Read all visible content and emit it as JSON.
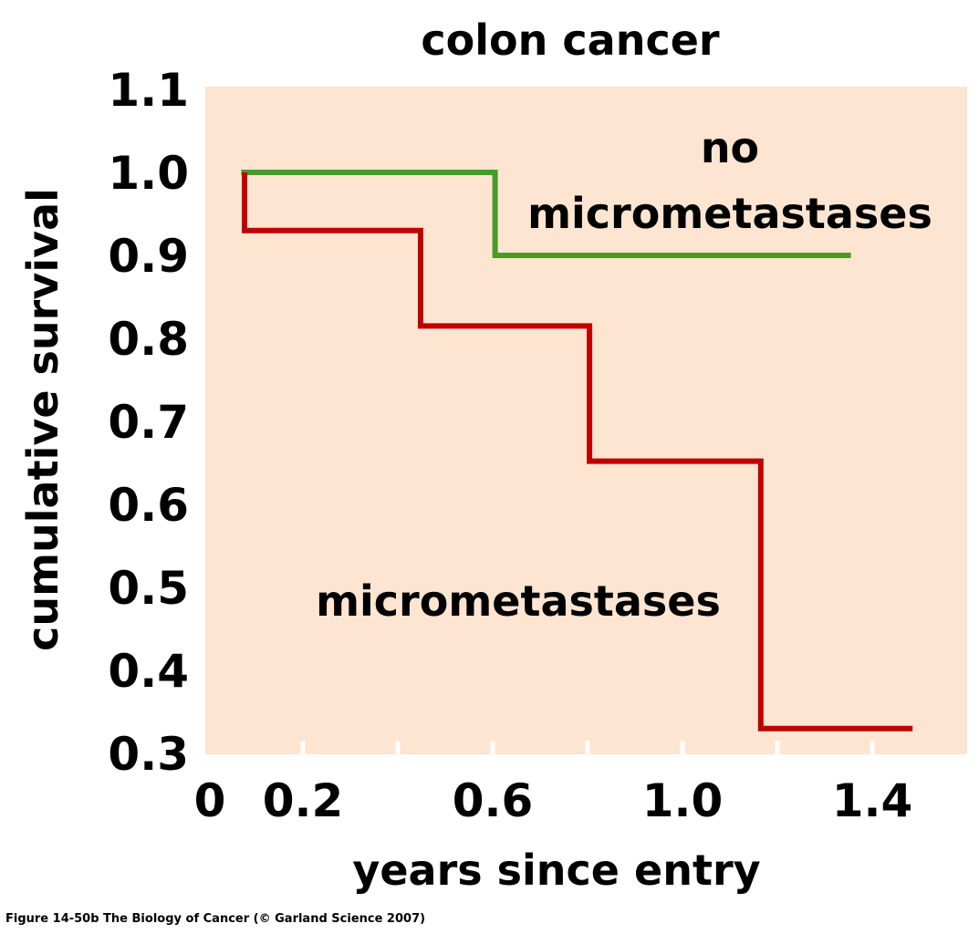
{
  "chart_data": {
    "type": "line",
    "step": true,
    "title": "colon cancer",
    "xlabel": "years since entry",
    "ylabel": "cumulative survival",
    "xlim": [
      0,
      1.6
    ],
    "ylim": [
      0.3,
      1.1
    ],
    "x_ticks": [
      0.2,
      0.4,
      0.6,
      0.8,
      1.0,
      1.2,
      1.4
    ],
    "x_tick_labels": [
      {
        "value": 0,
        "label": "0"
      },
      {
        "value": 0.2,
        "label": "0.2"
      },
      {
        "value": 0.6,
        "label": "0.6"
      },
      {
        "value": 1.0,
        "label": "1.0"
      },
      {
        "value": 1.4,
        "label": "1.4"
      }
    ],
    "y_tick_labels": [
      {
        "value": 1.1,
        "label": "1.1"
      },
      {
        "value": 1.0,
        "label": "1.0"
      },
      {
        "value": 0.9,
        "label": "0.9"
      },
      {
        "value": 0.8,
        "label": "0.8"
      },
      {
        "value": 0.7,
        "label": "0.7"
      },
      {
        "value": 0.6,
        "label": "0.6"
      },
      {
        "value": 0.5,
        "label": "0.5"
      },
      {
        "value": 0.4,
        "label": "0.4"
      },
      {
        "value": 0.3,
        "label": "0.3"
      }
    ],
    "series": [
      {
        "name": "no micrometastases",
        "label_lines": [
          "no",
          "micrometastases"
        ],
        "color": "#4a9a2a",
        "points": [
          [
            0.07,
            1.0
          ],
          [
            0.605,
            1.0
          ],
          [
            0.605,
            0.9
          ],
          [
            1.355,
            0.9
          ]
        ]
      },
      {
        "name": "micrometastases",
        "label_lines": [
          "micrometastases"
        ],
        "color": "#c00000",
        "points": [
          [
            0.077,
            1.0
          ],
          [
            0.077,
            0.93
          ],
          [
            0.448,
            0.93
          ],
          [
            0.448,
            0.815
          ],
          [
            0.804,
            0.815
          ],
          [
            0.804,
            0.652
          ],
          [
            1.165,
            0.652
          ],
          [
            1.165,
            0.33
          ],
          [
            1.485,
            0.33
          ]
        ]
      }
    ],
    "plot_background": "#fde5d1"
  },
  "caption": "Figure 14-50b  The Biology of Cancer (© Garland Science 2007)"
}
